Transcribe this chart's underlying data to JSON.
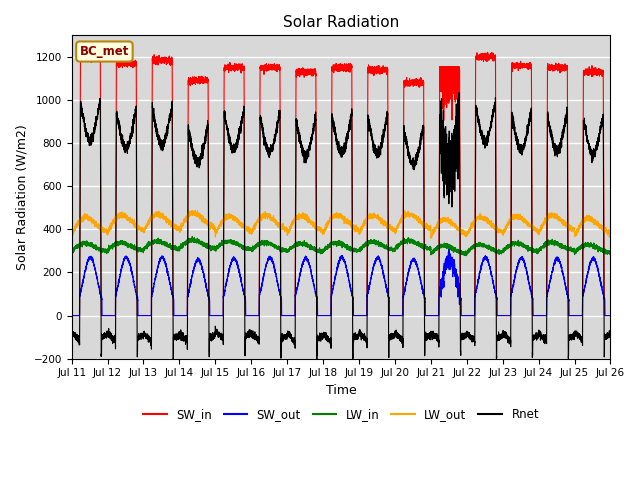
{
  "title": "Solar Radiation",
  "xlabel": "Time",
  "ylabel": "Solar Radiation (W/m2)",
  "ylim": [
    -200,
    1300
  ],
  "yticks": [
    -200,
    0,
    200,
    400,
    600,
    800,
    1000,
    1200
  ],
  "xlim_start": 0,
  "xlim_end": 15,
  "xtick_labels": [
    "Jul 11",
    "Jul 12",
    "Jul 13",
    "Jul 14",
    "Jul 15",
    "Jul 16",
    "Jul 17",
    "Jul 18",
    "Jul 19",
    "Jul 20",
    "Jul 21",
    "Jul 22",
    "Jul 23",
    "Jul 24",
    "Jul 25",
    "Jul 26"
  ],
  "legend_labels": [
    "SW_in",
    "SW_out",
    "LW_in",
    "LW_out",
    "Rnet"
  ],
  "legend_colors": [
    "red",
    "blue",
    "green",
    "orange",
    "black"
  ],
  "station_label": "BC_met",
  "colors": {
    "SW_in": "red",
    "SW_out": "blue",
    "LW_in": "green",
    "LW_out": "orange",
    "Rnet": "black"
  },
  "background_color": "#d8d8d8",
  "grid_color": "white",
  "sw_in_peaks": [
    1200,
    1170,
    1185,
    1090,
    1150,
    1150,
    1130,
    1150,
    1140,
    1080,
    1100,
    1200,
    1160,
    1150,
    1130
  ],
  "sw_out_peaks": [
    270,
    270,
    270,
    260,
    265,
    268,
    265,
    270,
    268,
    260,
    265,
    270,
    268,
    265,
    265
  ],
  "lw_in_base": [
    305,
    310,
    315,
    320,
    315,
    310,
    305,
    308,
    312,
    318,
    295,
    300,
    305,
    310,
    300
  ],
  "lw_out_base": [
    380,
    390,
    395,
    400,
    385,
    390,
    385,
    390,
    388,
    395,
    370,
    380,
    385,
    390,
    375
  ]
}
